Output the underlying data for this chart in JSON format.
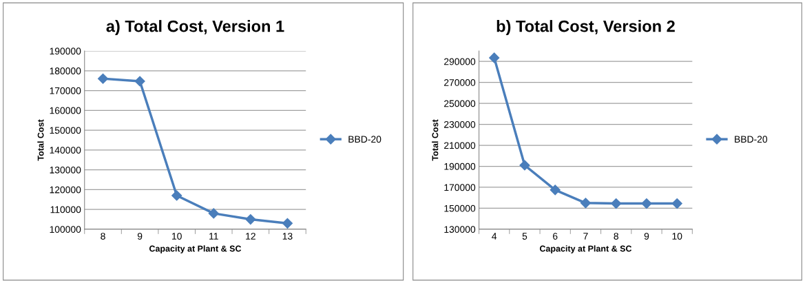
{
  "chart_data": [
    {
      "type": "line",
      "title": "a) Total Cost, Version 1",
      "xlabel": "Capacity at Plant & SC",
      "ylabel": "Total Cost",
      "categories": [
        "8",
        "9",
        "10",
        "11",
        "12",
        "13"
      ],
      "series": [
        {
          "name": "BBD-20",
          "color": "#4a7ebb",
          "values": [
            176000,
            174700,
            117000,
            108000,
            105000,
            103000
          ]
        }
      ],
      "ylim": [
        100000,
        190000
      ],
      "yticks": [
        100000,
        110000,
        120000,
        130000,
        140000,
        150000,
        160000,
        170000,
        180000,
        190000
      ],
      "grid": "y",
      "legend": "right",
      "marker": "diamond",
      "line_style": "solid"
    },
    {
      "type": "line",
      "title": "b) Total Cost, Version 2",
      "xlabel": "Capacity at Plant & SC",
      "ylabel": "Total Cost",
      "categories": [
        "4",
        "5",
        "6",
        "7",
        "8",
        "9",
        "10"
      ],
      "series": [
        {
          "name": "BBD-20",
          "color": "#4a7ebb",
          "values": [
            293500,
            191000,
            167500,
            155000,
            154500,
            154500,
            154500
          ]
        }
      ],
      "ylim": [
        130000,
        300000
      ],
      "yticks": [
        130000,
        150000,
        170000,
        190000,
        210000,
        230000,
        250000,
        270000,
        290000
      ],
      "grid": "y",
      "legend": "right",
      "marker": "diamond",
      "line_style": "solid"
    }
  ]
}
